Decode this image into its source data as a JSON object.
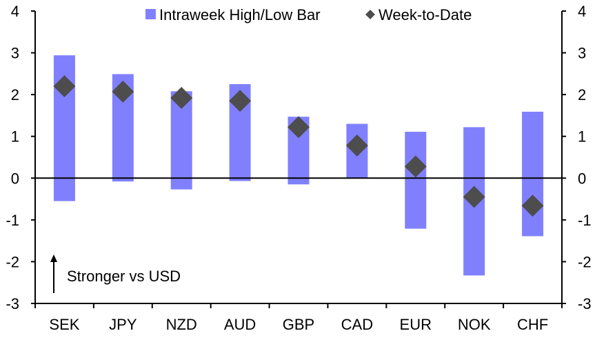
{
  "chart_data": {
    "type": "bar",
    "subtype": "floating-range-with-markers",
    "title": "",
    "xlabel": "",
    "ylabel": "",
    "ylim": [
      -3,
      4
    ],
    "yticks": [
      4,
      3,
      2,
      1,
      0,
      -1,
      -2,
      -3
    ],
    "ytick_labels": [
      "4",
      "3",
      "2",
      "1",
      "0",
      "-1",
      "-2",
      "-3"
    ],
    "secondary_ylim": [
      -3,
      4
    ],
    "grid": false,
    "legend_position": "top-center",
    "categories": [
      "SEK",
      "JPY",
      "NZD",
      "AUD",
      "GBP",
      "CAD",
      "EUR",
      "NOK",
      "CHF"
    ],
    "series": [
      {
        "name": "Intraweek High/Low Bar",
        "kind": "range-bar",
        "color": "#8080ff",
        "high": [
          2.94,
          2.49,
          2.08,
          2.25,
          1.47,
          1.3,
          1.11,
          1.22,
          1.59
        ],
        "low": [
          -0.55,
          -0.08,
          -0.27,
          -0.07,
          -0.15,
          0.0,
          -1.21,
          -2.33,
          -1.39
        ]
      },
      {
        "name": "Week-to-Date",
        "kind": "diamond-marker",
        "color": "#4d4d4d",
        "values": [
          2.2,
          2.07,
          1.92,
          1.85,
          1.22,
          0.78,
          0.28,
          -0.45,
          -0.66
        ]
      }
    ],
    "annotations": [
      {
        "text": "Stronger vs USD",
        "arrow": "up",
        "position": "bottom-left"
      }
    ]
  }
}
